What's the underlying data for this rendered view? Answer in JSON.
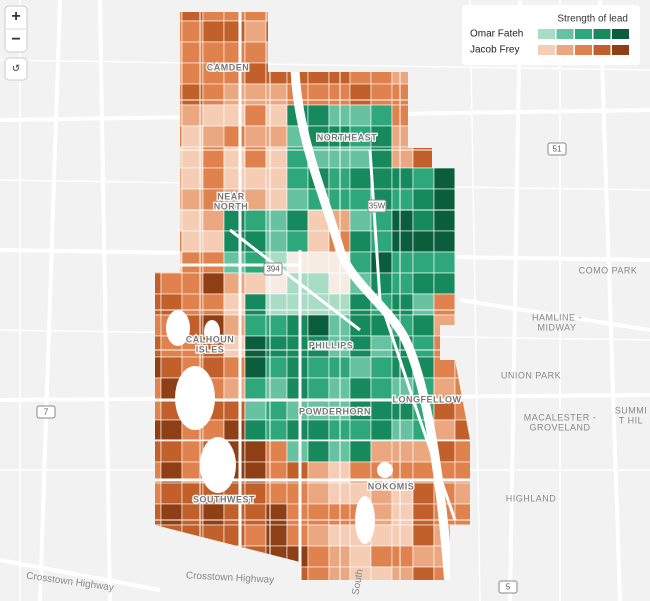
{
  "controls": {
    "zoom_in": "+",
    "zoom_out": "−",
    "reset": "↺"
  },
  "legend": {
    "title": "Strength of lead",
    "series": [
      {
        "name": "Omar Fateh",
        "colors": [
          "#a8dcc4",
          "#66c2a0",
          "#2ea87a",
          "#168a5c",
          "#0b5e3c"
        ]
      },
      {
        "name": "Jacob Frey",
        "colors": [
          "#f4cdb4",
          "#eba77f",
          "#e0824d",
          "#c2602c",
          "#8f3f16"
        ]
      }
    ]
  },
  "map": {
    "neighborhoods": [
      "CAMDEN",
      "NORTHEAST",
      "NEAR",
      "NORTH",
      "CALHOUN",
      "ISLES",
      "PHILLIPS",
      "POWDERHORN",
      "LONGFELLOW",
      "SOUTHWEST",
      "NOKOMIS"
    ],
    "places": [
      "COMO PARK",
      "HAMLINE -",
      "MIDWAY",
      "UNION PARK",
      "MACALESTER -",
      "GROVELAND",
      "SUMMI",
      "T HIL",
      "HIGHLAND"
    ],
    "roads": [
      "Crosstown Highway",
      "Crosstown Highway",
      "South"
    ],
    "shields": [
      "51",
      "35W",
      "394",
      "7",
      "5"
    ]
  }
}
